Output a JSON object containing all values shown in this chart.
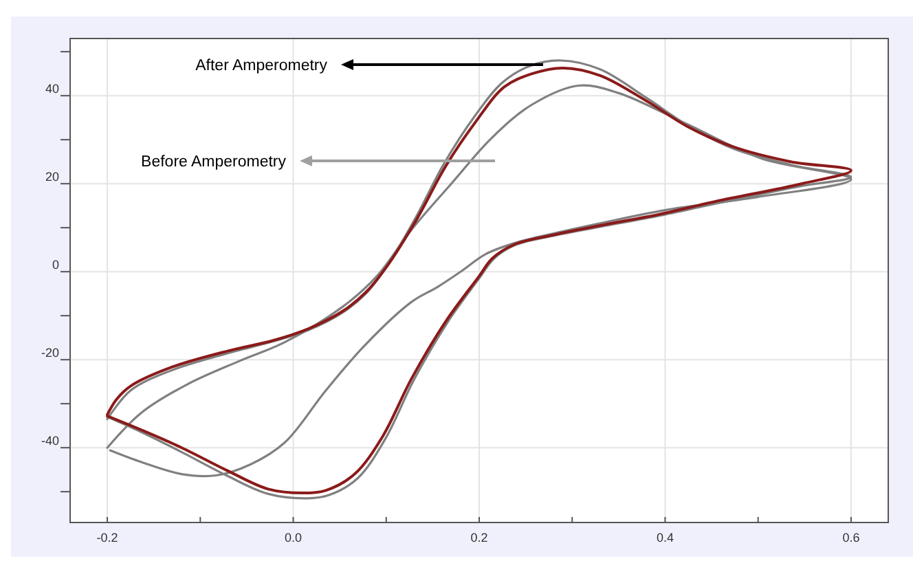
{
  "chart_data": {
    "type": "line",
    "xlim": [
      -0.24,
      0.64
    ],
    "ylim": [
      -57,
      53
    ],
    "xticks": [
      -0.2,
      {
        "value": -0.1,
        "label": null
      },
      {
        "value": 0,
        "label": "0.0"
      },
      {
        "value": 0.1,
        "label": null
      },
      0.2,
      {
        "value": 0.3,
        "label": null
      },
      0.4,
      {
        "value": 0.5,
        "label": null
      },
      0.6
    ],
    "yticks": [
      {
        "value": -50,
        "label": null
      },
      -40,
      {
        "value": -30,
        "label": null
      },
      -20,
      {
        "value": -10,
        "label": null
      },
      0,
      {
        "value": 10,
        "label": null
      },
      20,
      {
        "value": 30,
        "label": null
      },
      40,
      {
        "value": 50,
        "label": null
      }
    ],
    "grid": true,
    "line_style": "solid",
    "marker": "none",
    "series": [
      {
        "color": "#808080",
        "x": [
          -0.2,
          -0.163,
          -0.114,
          -0.058,
          -0.009,
          0.053,
          0.09,
          0.127,
          0.17,
          0.213,
          0.257,
          0.307,
          0.35,
          0.424,
          0.504,
          0.6,
          0.5,
          0.4,
          0.33,
          0.276,
          0.238,
          0.207,
          0.18,
          0.155,
          0.127,
          0.078,
          0.035,
          -0.009,
          -0.046,
          -0.083,
          -0.12,
          -0.163,
          -0.197
        ],
        "values": [
          -40,
          -32,
          -25.6,
          -20.3,
          -16,
          -8,
          -1,
          9.5,
          20,
          30.3,
          38,
          42.3,
          40.6,
          33.5,
          25.7,
          21,
          17,
          14,
          11,
          8.5,
          6.5,
          4,
          0,
          -3.5,
          -6.9,
          -16.5,
          -27,
          -38.8,
          -43.8,
          -46.3,
          -46,
          -43.3,
          -40.6
        ]
      },
      {
        "color": "#808080",
        "x": [
          -0.2,
          -0.175,
          -0.132,
          -0.07,
          -0.021,
          0.016,
          0.053,
          0.078,
          0.1,
          0.131,
          0.162,
          0.194,
          0.225,
          0.255,
          0.288,
          0.33,
          0.38,
          0.424,
          0.473,
          0.535,
          0.6,
          0.547,
          0.455,
          0.393,
          0.33,
          0.276,
          0.238,
          0.216,
          0.2,
          0.166,
          0.13,
          0.099,
          0.069,
          0.038,
          0.015,
          -0.027,
          -0.07,
          -0.12,
          -0.163,
          -0.2
        ],
        "values": [
          -33.5,
          -27,
          -22.5,
          -18.5,
          -15.8,
          -13.3,
          -9.3,
          -5,
          1,
          12,
          24.5,
          35,
          43,
          46.8,
          48,
          46,
          39.5,
          33.3,
          28,
          24.3,
          21.5,
          19.5,
          15.5,
          12.7,
          10.2,
          8,
          6,
          3,
          -1.5,
          -11.5,
          -24.5,
          -38,
          -47,
          -50.8,
          -51.5,
          -50.5,
          -46.5,
          -41,
          -36.5,
          -33
        ]
      },
      {
        "color": "#8b1a1a",
        "x": [
          -0.2,
          -0.19,
          -0.175,
          -0.132,
          -0.07,
          -0.021,
          0.016,
          0.053,
          0.078,
          0.1,
          0.133,
          0.164,
          0.196,
          0.227,
          0.257,
          0.29,
          0.33,
          0.38,
          0.424,
          0.473,
          0.535,
          0.6,
          0.547,
          0.455,
          0.393,
          0.33,
          0.276,
          0.238,
          0.214,
          0.2,
          0.164,
          0.127,
          0.096,
          0.066,
          0.035,
          0.01,
          -0.027,
          -0.07,
          -0.12,
          -0.163,
          -0.2
        ],
        "values": [
          -32.5,
          -29,
          -26,
          -21.8,
          -18,
          -15.6,
          -13,
          -9,
          -4.7,
          1,
          12,
          24,
          34,
          42,
          45,
          46.3,
          44.6,
          38.8,
          33,
          28.4,
          25,
          23,
          20,
          16,
          13,
          10.5,
          8.2,
          6.2,
          3,
          -1,
          -11.3,
          -24.4,
          -37.5,
          -46,
          -49.7,
          -50.3,
          -49.4,
          -45.3,
          -40,
          -36,
          -32.8
        ]
      }
    ],
    "annotations": [
      "After Amperometry",
      "Before Amperometry"
    ]
  }
}
